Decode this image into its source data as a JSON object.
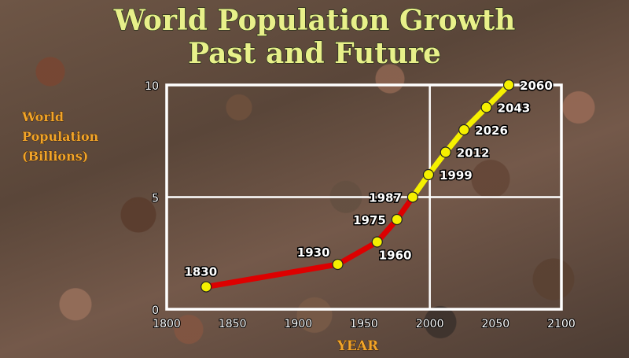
{
  "chart_data": {
    "type": "line",
    "title": "World Population Growth",
    "subtitle": "Past and Future",
    "ylabel_lines": [
      "World",
      "Population",
      "(Billions)"
    ],
    "xlabel": "YEAR",
    "xlim": [
      1800,
      2100
    ],
    "ylim": [
      0,
      10
    ],
    "x_ticks": [
      1800,
      1850,
      1900,
      1950,
      2000,
      2050,
      2100
    ],
    "y_ticks": [
      0,
      5,
      10
    ],
    "grid": {
      "x": [
        2000
      ],
      "y": [
        5
      ]
    },
    "series": [
      {
        "color": "#dd0000",
        "points": [
          {
            "x": 1830,
            "y": 1
          },
          {
            "x": 1930,
            "y": 2
          },
          {
            "x": 1960,
            "y": 3
          },
          {
            "x": 1975,
            "y": 4
          },
          {
            "x": 1987,
            "y": 5
          }
        ]
      },
      {
        "color": "#f5f000",
        "points": [
          {
            "x": 1987,
            "y": 5
          },
          {
            "x": 1999,
            "y": 6
          },
          {
            "x": 2012,
            "y": 7
          },
          {
            "x": 2026,
            "y": 8
          },
          {
            "x": 2043,
            "y": 9
          },
          {
            "x": 2060,
            "y": 10
          }
        ]
      }
    ],
    "point_labels": [
      {
        "text": "1830",
        "x": 1830,
        "y": 1,
        "pos": "left"
      },
      {
        "text": "1930",
        "x": 1930,
        "y": 2,
        "pos": "upleft"
      },
      {
        "text": "1960",
        "x": 1960,
        "y": 3,
        "pos": "belowright"
      },
      {
        "text": "1975",
        "x": 1975,
        "y": 4,
        "pos": "left"
      },
      {
        "text": "1987",
        "x": 1987,
        "y": 5,
        "pos": "left"
      },
      {
        "text": "1999",
        "x": 1999,
        "y": 6,
        "pos": "right"
      },
      {
        "text": "2012",
        "x": 2012,
        "y": 7,
        "pos": "right"
      },
      {
        "text": "2026",
        "x": 2026,
        "y": 8,
        "pos": "right"
      },
      {
        "text": "2043",
        "x": 2043,
        "y": 9,
        "pos": "right"
      },
      {
        "text": "2060",
        "x": 2060,
        "y": 10,
        "pos": "right"
      }
    ],
    "marker_color": "#f5f000",
    "plot_background": "transparent",
    "frame_color": "#ffffff"
  }
}
